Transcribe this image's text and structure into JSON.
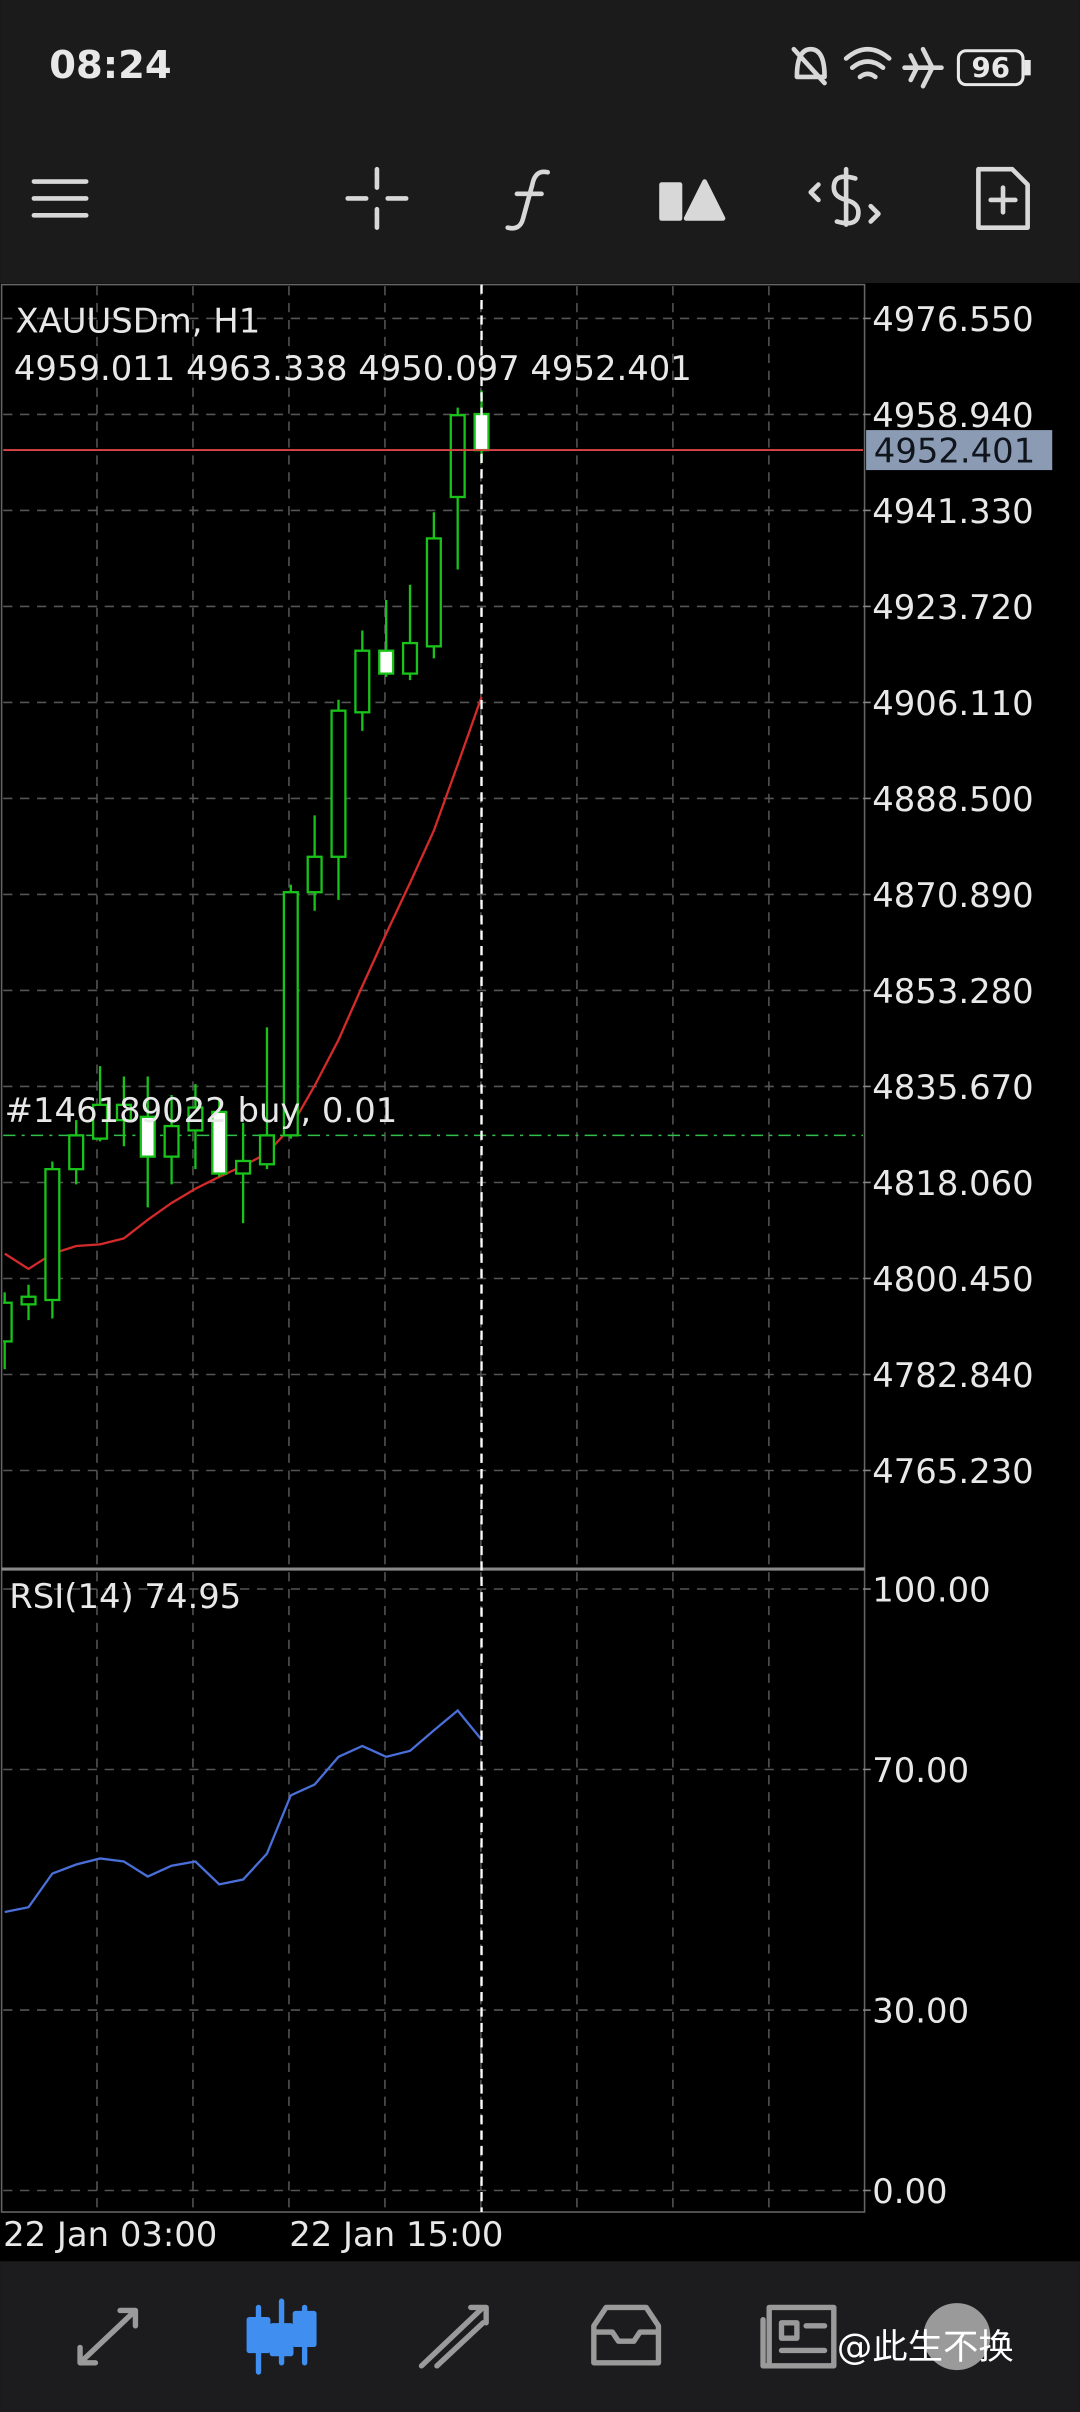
{
  "status_bar": {
    "time": "08:24",
    "battery": "96"
  },
  "watermark": "@此生不换",
  "chart_data": [
    {
      "type": "candlestick",
      "title": "XAUUSDm, H1",
      "ohlc_text": "4959.011 4963.338 4950.097 4952.401",
      "categories": [
        "22 Jan 03:00",
        null,
        null,
        null,
        null,
        null,
        null,
        null,
        null,
        null,
        null,
        null,
        "22 Jan 15:00",
        null,
        null,
        null,
        null,
        null,
        null,
        null,
        null
      ],
      "open": [
        4788.9,
        4795.7,
        4796.5,
        4820.5,
        4826.1,
        4829.5,
        4830.1,
        4822.8,
        4827.6,
        4831.0,
        4819.7,
        4821.4,
        4826.7,
        4871.3,
        4877.8,
        4904.3,
        4915.6,
        4911.4,
        4916.4,
        4943.8,
        4959.011
      ],
      "high": [
        4797.9,
        4799.3,
        4821.9,
        4829.5,
        4839.4,
        4837.5,
        4837.5,
        4834.1,
        4836.1,
        4833.3,
        4829.0,
        4846.5,
        4872.7,
        4885.4,
        4906.6,
        4919.3,
        4924.9,
        4927.7,
        4941.0,
        4960.2,
        4963.338
      ],
      "low": [
        4783.8,
        4792.8,
        4793.1,
        4817.7,
        4825.6,
        4824.7,
        4813.5,
        4817.7,
        4820.5,
        4819.1,
        4810.6,
        4820.5,
        4826.1,
        4867.9,
        4869.9,
        4900.9,
        4910.8,
        4910.2,
        4914.2,
        4930.5,
        4950.097
      ],
      "close": [
        4796.0,
        4797.1,
        4820.5,
        4826.7,
        4832.3,
        4832.3,
        4822.8,
        4828.4,
        4831.8,
        4819.7,
        4822.0,
        4826.7,
        4871.3,
        4877.8,
        4904.6,
        4915.6,
        4911.4,
        4917.0,
        4936.2,
        4958.8,
        4952.401
      ],
      "up_color": "#19c319",
      "down_color": "#ffffff",
      "ma": {
        "color": "#d42a2a",
        "values": [
          4805.0,
          4802.2,
          4805.0,
          4806.4,
          4806.7,
          4807.8,
          4811.2,
          4814.3,
          4816.9,
          4819.1,
          4821.1,
          4823.4,
          4828.2,
          4835.8,
          4844.2,
          4854.1,
          4863.7,
          4873.0,
          4882.6,
          4894.7,
          4907.1
        ]
      },
      "current_price": {
        "value": 4952.401,
        "label": "4952.401"
      },
      "order_line": {
        "value": 4826.7,
        "label": "#146189022 buy, 0.01"
      },
      "ylim": [
        4747.15,
        4982.76
      ],
      "yticks": [
        {
          "value": 4976.55,
          "label": "4976.550"
        },
        {
          "value": 4958.94,
          "label": "4958.940"
        },
        {
          "value": 4941.33,
          "label": "4941.330"
        },
        {
          "value": 4923.72,
          "label": "4923.720"
        },
        {
          "value": 4906.11,
          "label": "4906.110"
        },
        {
          "value": 4888.5,
          "label": "4888.500"
        },
        {
          "value": 4870.89,
          "label": "4870.890"
        },
        {
          "value": 4853.28,
          "label": "4853.280"
        },
        {
          "value": 4835.67,
          "label": "4835.670"
        },
        {
          "value": 4818.06,
          "label": "4818.060"
        },
        {
          "value": 4800.45,
          "label": "4800.450"
        },
        {
          "value": 4782.84,
          "label": "4782.840"
        },
        {
          "value": 4765.23,
          "label": "4765.230"
        }
      ],
      "grid": true
    },
    {
      "type": "line",
      "title": "RSI(14) 74.95",
      "series": [
        {
          "color": "#4a6fd8",
          "values": [
            46.3,
            47.1,
            52.7,
            54.2,
            55.2,
            54.7,
            52.2,
            54.0,
            54.7,
            50.9,
            51.7,
            56.0,
            65.7,
            67.5,
            72.1,
            73.9,
            72.1,
            73.1,
            76.5,
            79.8,
            74.95
          ]
        }
      ],
      "ylim": [
        0,
        100
      ],
      "yticks": [
        {
          "value": 100,
          "label": "100.00"
        },
        {
          "value": 70,
          "label": "70.00"
        },
        {
          "value": 30,
          "label": "30.00"
        },
        {
          "value": 0,
          "label": "0.00"
        }
      ],
      "grid": true
    }
  ]
}
